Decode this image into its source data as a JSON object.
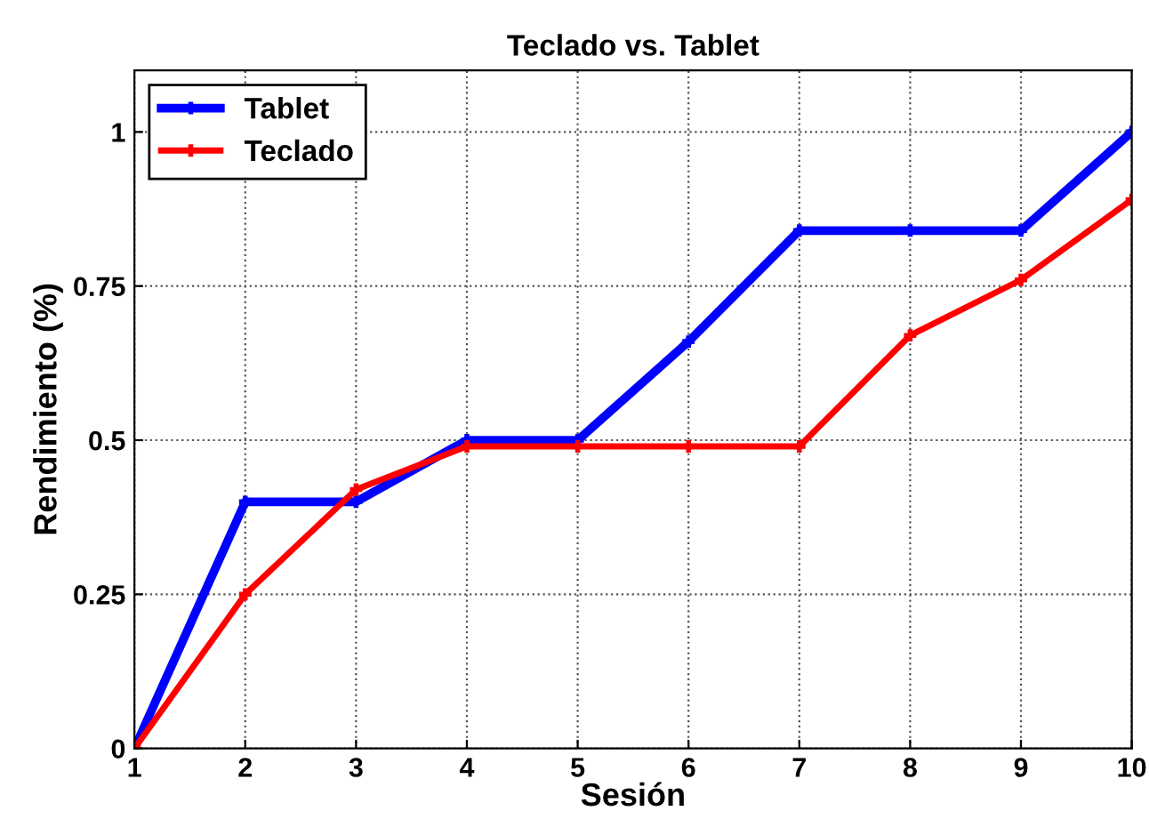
{
  "chart_data": {
    "type": "line",
    "title": "Teclado vs. Tablet",
    "xlabel": "Sesión",
    "ylabel": "Rendimiento (%)",
    "x": [
      1,
      2,
      3,
      4,
      5,
      6,
      7,
      8,
      9,
      10
    ],
    "series": [
      {
        "name": "Tablet",
        "color": "#0000ff",
        "values": [
          0,
          0.4,
          0.4,
          0.5,
          0.5,
          0.66,
          0.84,
          0.84,
          0.84,
          1
        ]
      },
      {
        "name": "Teclado",
        "color": "#ff0000",
        "values": [
          0,
          0.25,
          0.42,
          0.49,
          0.49,
          0.49,
          0.49,
          0.67,
          0.76,
          0.89
        ]
      }
    ],
    "xlim": [
      1,
      10
    ],
    "xticks": [
      1,
      2,
      3,
      4,
      5,
      6,
      7,
      8,
      9,
      10
    ],
    "ylim": [
      0,
      1.1
    ],
    "yticks": [
      0,
      0.25,
      0.5,
      0.75,
      1
    ],
    "grid": true,
    "legend": "top left",
    "marker": "cross",
    "line_style": "solid"
  }
}
